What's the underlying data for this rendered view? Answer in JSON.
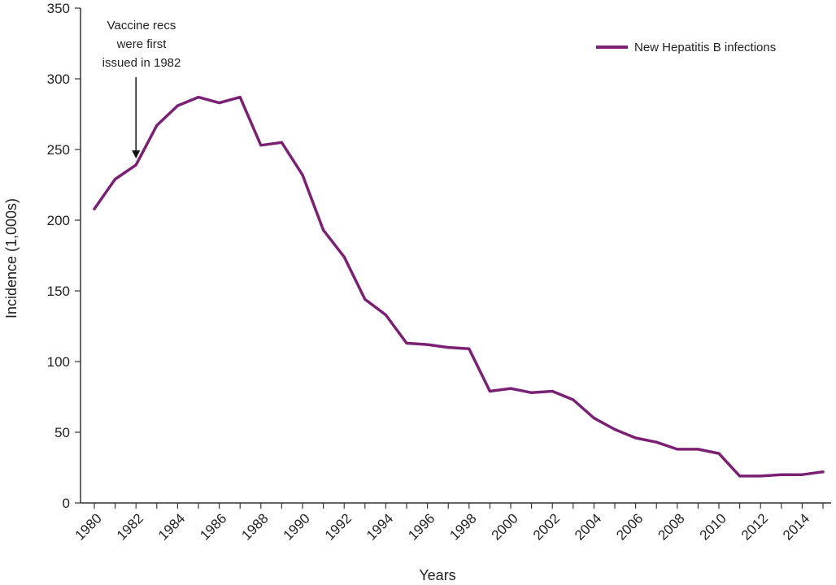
{
  "chart_data": {
    "type": "line",
    "title": "",
    "xlabel": "Years",
    "ylabel": "Incidence (1,000s)",
    "ylim": [
      0,
      350
    ],
    "xlim": [
      1980,
      2015
    ],
    "y_ticks": [
      0,
      50,
      100,
      150,
      200,
      250,
      300,
      350
    ],
    "x_tick_labels": [
      "1980",
      "1982",
      "1984",
      "1986",
      "1988",
      "1990",
      "1992",
      "1994",
      "1996",
      "1998",
      "2000",
      "2002",
      "2004",
      "2006",
      "2008",
      "2010",
      "2012",
      "2014"
    ],
    "grid": false,
    "legend_position": "top-right",
    "series": [
      {
        "name": "New Hepatitis B infections",
        "color": "#7b2174",
        "x": [
          1980,
          1981,
          1982,
          1983,
          1984,
          1985,
          1986,
          1987,
          1988,
          1989,
          1990,
          1991,
          1992,
          1993,
          1994,
          1995,
          1996,
          1997,
          1998,
          1999,
          2000,
          2001,
          2002,
          2003,
          2004,
          2005,
          2006,
          2007,
          2008,
          2009,
          2010,
          2011,
          2012,
          2013,
          2014,
          2015
        ],
        "y": [
          208,
          229,
          239,
          267,
          281,
          287,
          283,
          287,
          253,
          255,
          232,
          193,
          174,
          144,
          133,
          113,
          112,
          110,
          109,
          79,
          81,
          78,
          79,
          73,
          60,
          52,
          46,
          43,
          38,
          38,
          35,
          19,
          19,
          20,
          20,
          22
        ]
      }
    ],
    "annotations": [
      {
        "lines": [
          "Vaccine recs",
          "were first",
          "issued in 1982"
        ],
        "arrow_to": {
          "x": 1982,
          "y": 239
        }
      }
    ]
  }
}
